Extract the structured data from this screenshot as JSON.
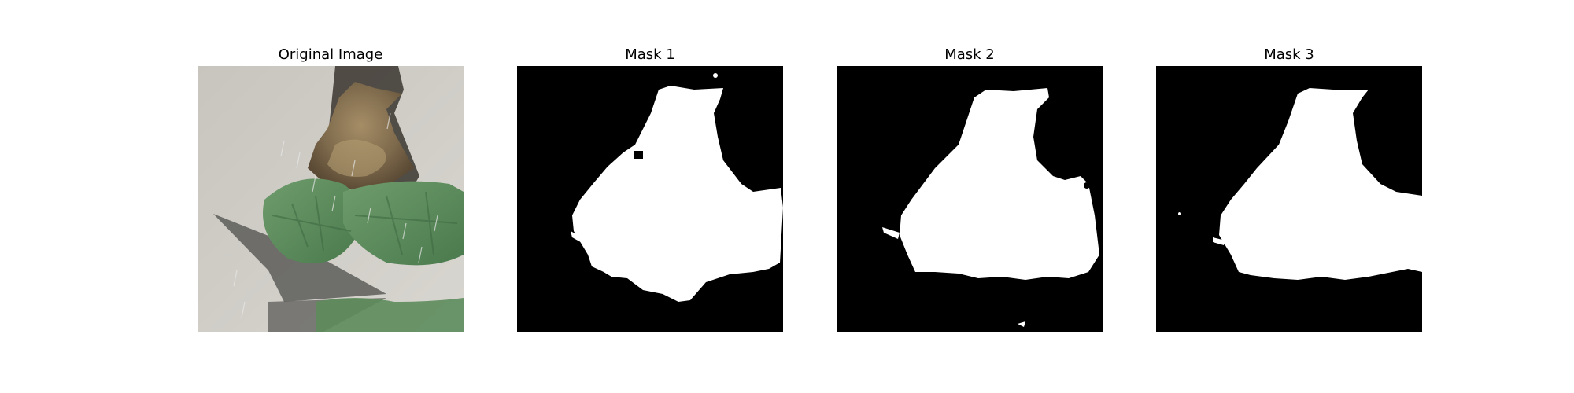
{
  "figure": {
    "panels": [
      {
        "title": "Original Image"
      },
      {
        "title": "Mask 1"
      },
      {
        "title": "Mask 2"
      },
      {
        "title": "Mask 3"
      }
    ]
  },
  "colors": {
    "mask_background": "#000000",
    "mask_foreground": "#ffffff",
    "leaf_green": "#5f8f5f",
    "nest_brown": "#8a7556",
    "wall_gray": "#c9c6bf"
  }
}
